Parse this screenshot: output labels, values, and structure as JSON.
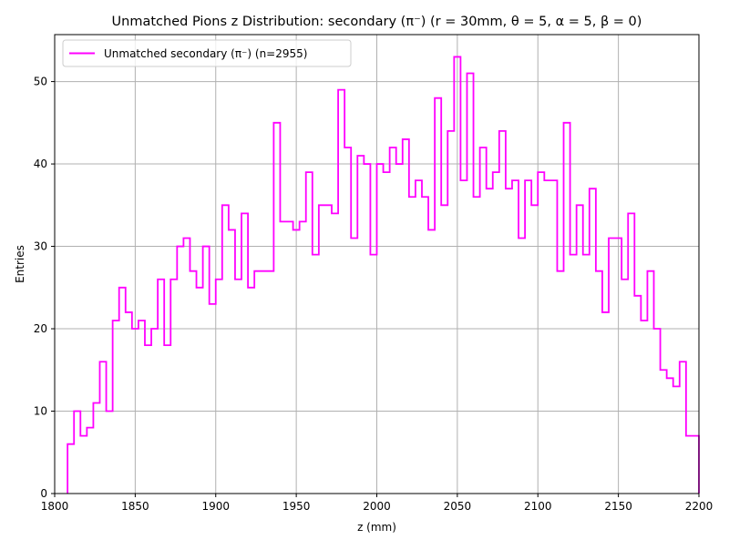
{
  "chart_data": {
    "type": "histogram-step",
    "title": "Unmatched Pions z Distribution: secondary (π⁻) (r = 30mm, θ = 5, α = 5, β = 0)",
    "xlabel": "z (mm)",
    "ylabel": "Entries",
    "xlim": [
      1800,
      2200
    ],
    "ylim": [
      0,
      55.7
    ],
    "xticks": [
      1800,
      1850,
      1900,
      1950,
      2000,
      2050,
      2100,
      2150,
      2200
    ],
    "yticks": [
      0,
      10,
      20,
      30,
      40,
      50
    ],
    "grid": true,
    "legend_position": "top-left",
    "series": [
      {
        "name": "Unmatched secondary (π⁻) (n=2955)",
        "color": "#ff00ff",
        "bin_start": 1808,
        "bin_width": 4,
        "bin_end": 2200,
        "values": [
          6,
          10,
          7,
          8,
          11,
          16,
          10,
          21,
          25,
          22,
          20,
          21,
          18,
          20,
          26,
          18,
          26,
          30,
          31,
          27,
          25,
          30,
          23,
          26,
          35,
          32,
          26,
          34,
          25,
          27,
          27,
          27,
          45,
          33,
          33,
          32,
          33,
          39,
          29,
          35,
          35,
          34,
          49,
          42,
          31,
          41,
          40,
          29,
          40,
          39,
          42,
          40,
          43,
          36,
          38,
          36,
          32,
          48,
          35,
          44,
          53,
          38,
          51,
          36,
          42,
          37,
          39,
          44,
          37,
          38,
          31,
          38,
          35,
          39,
          38,
          38,
          27,
          45,
          29,
          35,
          29,
          37,
          27,
          22,
          31,
          31,
          26,
          34,
          24,
          21,
          27,
          20,
          15,
          14,
          13,
          16,
          7,
          7
        ]
      }
    ]
  }
}
